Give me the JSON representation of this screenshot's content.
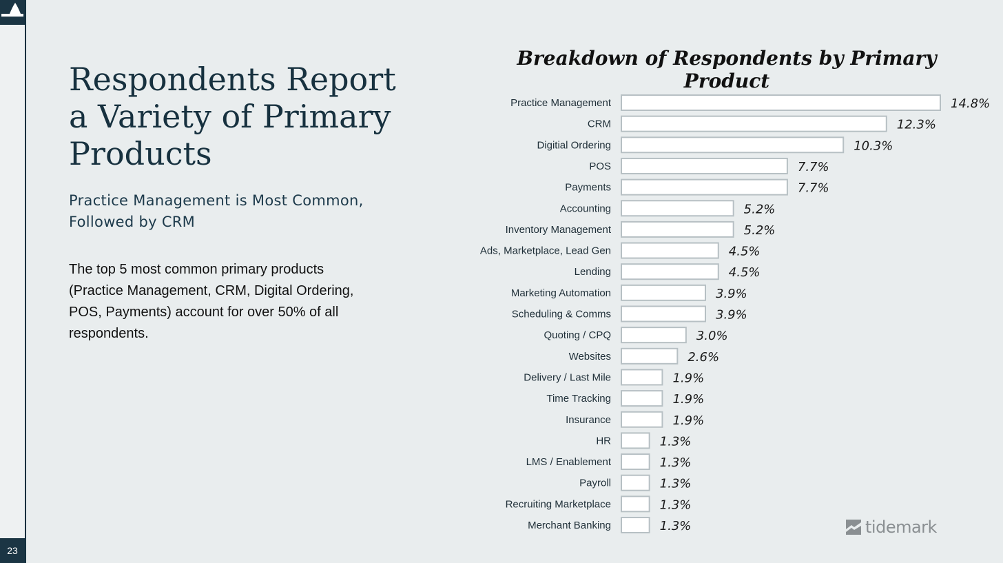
{
  "page": {
    "number": "23",
    "title": "Respondents Report a Variety of Primary Products",
    "subtitle": "Practice Management is Most Common, Followed by CRM",
    "body": "The top 5 most common primary products (Practice Management, CRM, Digital Ordering, POS, Payments) account for over 50% of all respondents."
  },
  "brand": {
    "name": "tidemark",
    "icon": "tidemark-logo-icon"
  },
  "colors": {
    "dark": "#1b3544",
    "bar_fill": "#ffffff",
    "bar_stroke": "#b7c0c4",
    "background": "#e9edee"
  },
  "chart_data": {
    "type": "bar",
    "orientation": "horizontal",
    "title": "Breakdown of Respondents by Primary Product",
    "categories": [
      "Practice Management",
      "CRM",
      "Digitial Ordering",
      "POS",
      "Payments",
      "Accounting",
      "Inventory Management",
      "Ads, Marketplace, Lead Gen",
      "Lending",
      "Marketing Automation",
      "Scheduling & Comms",
      "Quoting / CPQ",
      "Websites",
      "Delivery / Last Mile",
      "Time Tracking",
      "Insurance",
      "HR",
      "LMS / Enablement",
      "Payroll",
      "Recruiting Marketplace",
      "Merchant Banking"
    ],
    "values": [
      14.8,
      12.3,
      10.3,
      7.7,
      7.7,
      5.2,
      5.2,
      4.5,
      4.5,
      3.9,
      3.9,
      3.0,
      2.6,
      1.9,
      1.9,
      1.9,
      1.3,
      1.3,
      1.3,
      1.3,
      1.3
    ],
    "value_labels": [
      "14.8%",
      "12.3%",
      "10.3%",
      "7.7%",
      "7.7%",
      "5.2%",
      "5.2%",
      "4.5%",
      "4.5%",
      "3.9%",
      "3.9%",
      "3.0%",
      "2.6%",
      "1.9%",
      "1.9%",
      "1.9%",
      "1.3%",
      "1.3%",
      "1.3%",
      "1.3%",
      "1.3%"
    ],
    "xlim": [
      0,
      14.8
    ],
    "grid": false,
    "legend": "none"
  }
}
